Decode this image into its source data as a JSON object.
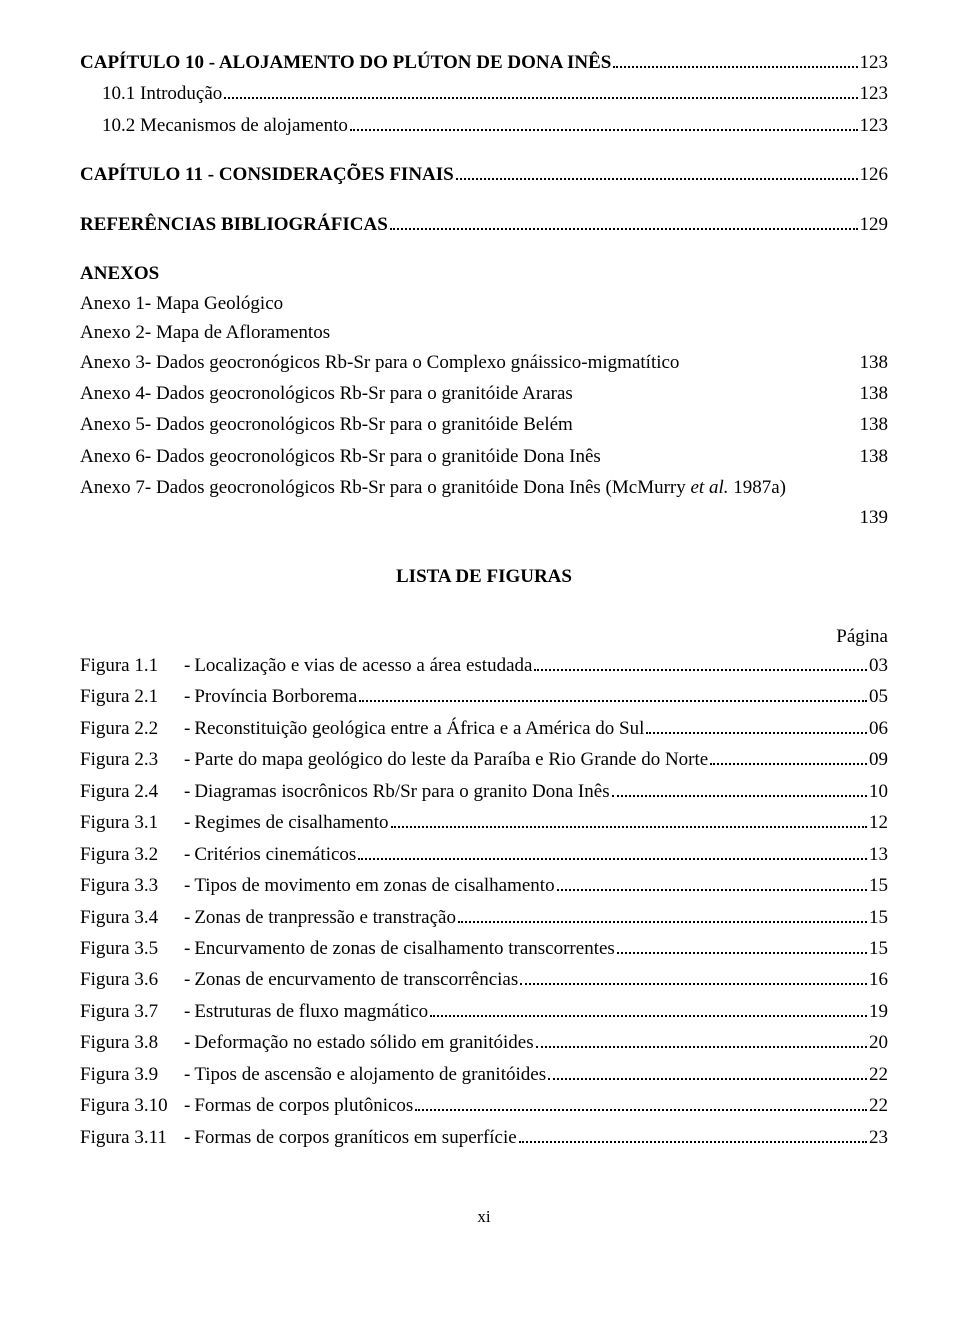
{
  "cap10": {
    "title": "CAPÍTULO 10 - ALOJAMENTO DO PLÚTON DE DONA INÊS",
    "page": "123",
    "s1_label": "10.1 Introdução",
    "s1_page": "123",
    "s2_label": "10.2 Mecanismos de alojamento",
    "s2_page": "123"
  },
  "cap11": {
    "title": "CAPÍTULO 11 - CONSIDERAÇÕES FINAIS",
    "page": "126"
  },
  "refs": {
    "title": "REFERÊNCIAS BIBLIOGRÁFICAS",
    "page": "129"
  },
  "anexos": {
    "heading": "ANEXOS",
    "a1": "Anexo 1- Mapa Geológico",
    "a2": "Anexo 2- Mapa de Afloramentos",
    "a3": "Anexo 3- Dados geocronógicos Rb-Sr para o Complexo gnáissico-migmatítico",
    "a3_page": "138",
    "a4": "Anexo 4- Dados geocronológicos Rb-Sr para o granitóide Araras",
    "a4_page": "138",
    "a5": "Anexo 5- Dados geocronológicos Rb-Sr para o granitóide Belém",
    "a5_page": "138",
    "a6": "Anexo 6- Dados geocronológicos Rb-Sr para o granitóide Dona Inês",
    "a6_page": "138",
    "a7_line1": "Anexo 7- Dados geocronológicos Rb-Sr para o granitóide Dona Inês (McMurry ",
    "a7_em": "et al.",
    "a7_tail": " 1987a)",
    "a7_page": "139"
  },
  "lista": {
    "heading": "LISTA DE FIGURAS",
    "pagina": "Página"
  },
  "figs": {
    "f11_no": "Figura 1.1",
    "f11_t": "Localização e vias de acesso a área estudada",
    "f11_p": "03",
    "f21_no": "Figura 2.1",
    "f21_t": "Província Borborema",
    "f21_p": "05",
    "f22_no": "Figura 2.2",
    "f22_t": "Reconstituição geológica entre a África e a América do Sul",
    "f22_p": "06",
    "f23_no": "Figura 2.3",
    "f23_t": "Parte do mapa geológico do leste da Paraíba e Rio Grande do Norte",
    "f23_p": "09",
    "f24_no": "Figura 2.4",
    "f24_t": "Diagramas isocrônicos Rb/Sr para o granito Dona Inês",
    "f24_p": "10",
    "f31_no": "Figura 3.1",
    "f31_t": "Regimes de cisalhamento",
    "f31_p": "12",
    "f32_no": "Figura 3.2",
    "f32_t": "Critérios cinemáticos",
    "f32_p": "13",
    "f33_no": "Figura 3.3",
    "f33_t": "Tipos de movimento em zonas de cisalhamento",
    "f33_p": "15",
    "f34_no": "Figura 3.4",
    "f34_t": "Zonas de tranpressão e transtração",
    "f34_p": "15",
    "f35_no": "Figura 3.5",
    "f35_t": "Encurvamento de zonas de cisalhamento transcorrentes",
    "f35_p": "15",
    "f36_no": "Figura 3.6",
    "f36_t": "Zonas de encurvamento de transcorrências",
    "f36_p": "16",
    "f37_no": "Figura 3.7",
    "f37_t": "Estruturas de fluxo magmático",
    "f37_p": "19",
    "f38_no": "Figura 3.8",
    "f38_t": "Deformação no estado sólido em granitóides",
    "f38_p": "20",
    "f39_no": "Figura 3.9",
    "f39_t": "Tipos de ascensão e alojamento de granitóides",
    "f39_p": "22",
    "f310_no": "Figura 3.10",
    "f310_t": "Formas de corpos plutônicos",
    "f310_p": "22",
    "f311_no": "Figura 3.11",
    "f311_t": "Formas de corpos graníticos em superfície",
    "f311_p": "23"
  },
  "pagenum": "xi"
}
